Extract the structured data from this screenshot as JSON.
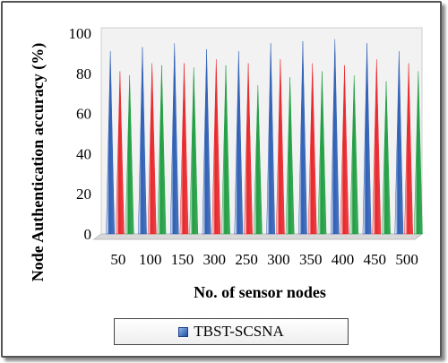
{
  "chart_data": {
    "type": "bar",
    "bar_shape": "cone",
    "ylabel": "Node Authentication accuracy (%)",
    "xlabel": "No. of sensor nodes",
    "ylim": [
      0,
      100
    ],
    "yticks": [
      0,
      20,
      40,
      60,
      80,
      100
    ],
    "categories": [
      "50",
      "100",
      "150",
      "300",
      "250",
      "300",
      "350",
      "400",
      "450",
      "500"
    ],
    "series": [
      {
        "name": "TBST-SCSNA",
        "color": "#2e5fb5",
        "values": [
          91,
          93,
          95,
          92,
          91,
          95,
          96,
          97,
          95,
          91
        ]
      },
      {
        "color": "#e8262b",
        "values": [
          81,
          85,
          85,
          87,
          85,
          87,
          85,
          84,
          87,
          85
        ]
      },
      {
        "color": "#1f9e42",
        "values": [
          79,
          84,
          83,
          84,
          74,
          78,
          81,
          79,
          76,
          81
        ]
      }
    ],
    "legend": {
      "position": "bottom",
      "entries": [
        "TBST-SCSNA"
      ]
    },
    "grid": false,
    "background": "#f2f2f2"
  }
}
